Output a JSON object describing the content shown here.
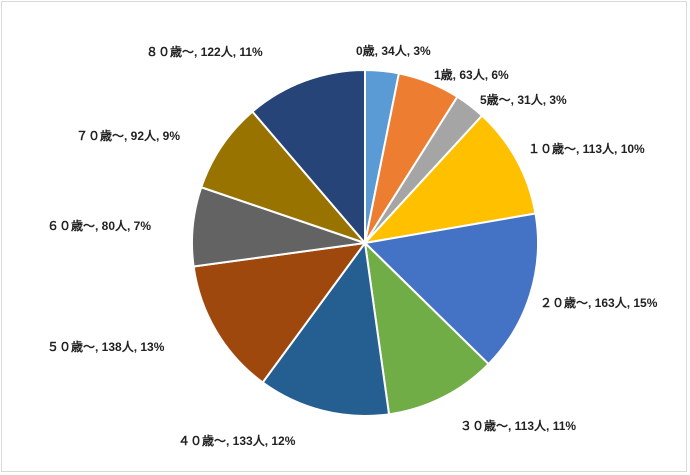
{
  "chart_data": {
    "type": "pie",
    "title": "",
    "legend": "none",
    "slices": [
      {
        "label": "0歳, 34人, 3%",
        "category": "0歳",
        "value": 34,
        "percent": 3,
        "color": "#5B9BD5"
      },
      {
        "label": "1歳, 63人, 6%",
        "category": "1歳",
        "value": 63,
        "percent": 6,
        "color": "#ED7D31"
      },
      {
        "label": "5歳〜, 31人, 3%",
        "category": "5歳〜",
        "value": 31,
        "percent": 3,
        "color": "#A5A5A5"
      },
      {
        "label": "１０歳〜, 113人, 10%",
        "category": "１０歳〜",
        "value": 113,
        "percent": 10,
        "color": "#FFC000"
      },
      {
        "label": "２０歳〜, 163人, 15%",
        "category": "２０歳〜",
        "value": 163,
        "percent": 15,
        "color": "#4472C4"
      },
      {
        "label": "３０歳〜, 113人, 11%",
        "category": "３０歳〜",
        "value": 113,
        "percent": 11,
        "color": "#70AD47"
      },
      {
        "label": "４０歳〜, 133人, 12%",
        "category": "４０歳〜",
        "value": 133,
        "percent": 12,
        "color": "#255E91"
      },
      {
        "label": "５０歳〜, 138人, 13%",
        "category": "５０歳〜",
        "value": 138,
        "percent": 13,
        "color": "#9E480E"
      },
      {
        "label": "６０歳〜, 80人, 7%",
        "category": "６０歳〜",
        "value": 80,
        "percent": 7,
        "color": "#636363"
      },
      {
        "label": "７０歳〜, 92人, 9%",
        "category": "７０歳〜",
        "value": 92,
        "percent": 9,
        "color": "#997300"
      },
      {
        "label": "８０歳〜, 122人, 11%",
        "category": "８０歳〜",
        "value": 122,
        "percent": 11,
        "color": "#264478"
      }
    ]
  }
}
